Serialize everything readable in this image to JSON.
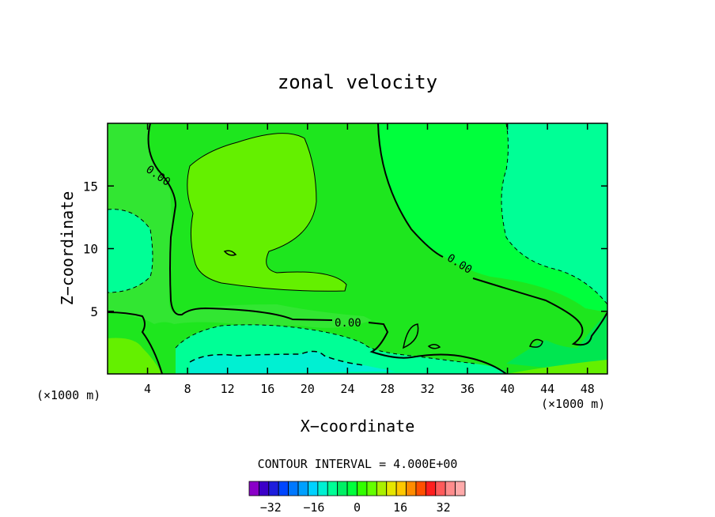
{
  "chart_data": {
    "type": "heatmap",
    "title": "zonal velocity",
    "xlabel": "X−coordinate",
    "ylabel": "Z−coordinate",
    "x_unit_left": "(×1000 m)",
    "x_unit_right": "(×1000 m)",
    "xlim": [
      0,
      50
    ],
    "ylim": [
      0,
      20
    ],
    "x_ticks": [
      4,
      8,
      12,
      16,
      20,
      24,
      28,
      32,
      36,
      40,
      44,
      48
    ],
    "x_tick_labels": [
      "4",
      "8",
      "12",
      "16",
      "20",
      "24",
      "28",
      "32",
      "36",
      "40",
      "44",
      "48"
    ],
    "y_ticks": [
      5,
      10,
      15
    ],
    "y_tick_labels": [
      "5",
      "10",
      "15"
    ],
    "contour_interval_text": "CONTOUR INTERVAL = 4.000E+00",
    "contour_labels": [
      "0.00",
      "0.00",
      "0.00"
    ],
    "colorbar": {
      "levels": [
        -36,
        -32,
        -28,
        -24,
        -20,
        -16,
        -12,
        -8,
        -4,
        0,
        4,
        8,
        12,
        16,
        20,
        24,
        28,
        32,
        36
      ],
      "tick_values": [
        -32,
        -16,
        0,
        16,
        32
      ],
      "tick_labels": [
        "−32",
        "−16",
        "0",
        "16",
        "32"
      ],
      "colors": [
        "#8a00c8",
        "#3c00c8",
        "#1e1edc",
        "#0046ff",
        "#0078ff",
        "#00a0ff",
        "#00d2ff",
        "#00f0d2",
        "#00ff96",
        "#00f064",
        "#00ff3c",
        "#32ff00",
        "#64ff00",
        "#aaf000",
        "#e6e600",
        "#ffc800",
        "#ff8c00",
        "#ff5000",
        "#ff1e1e",
        "#ff5a5a",
        "#ff8c8c",
        "#ffaaaa"
      ]
    }
  }
}
